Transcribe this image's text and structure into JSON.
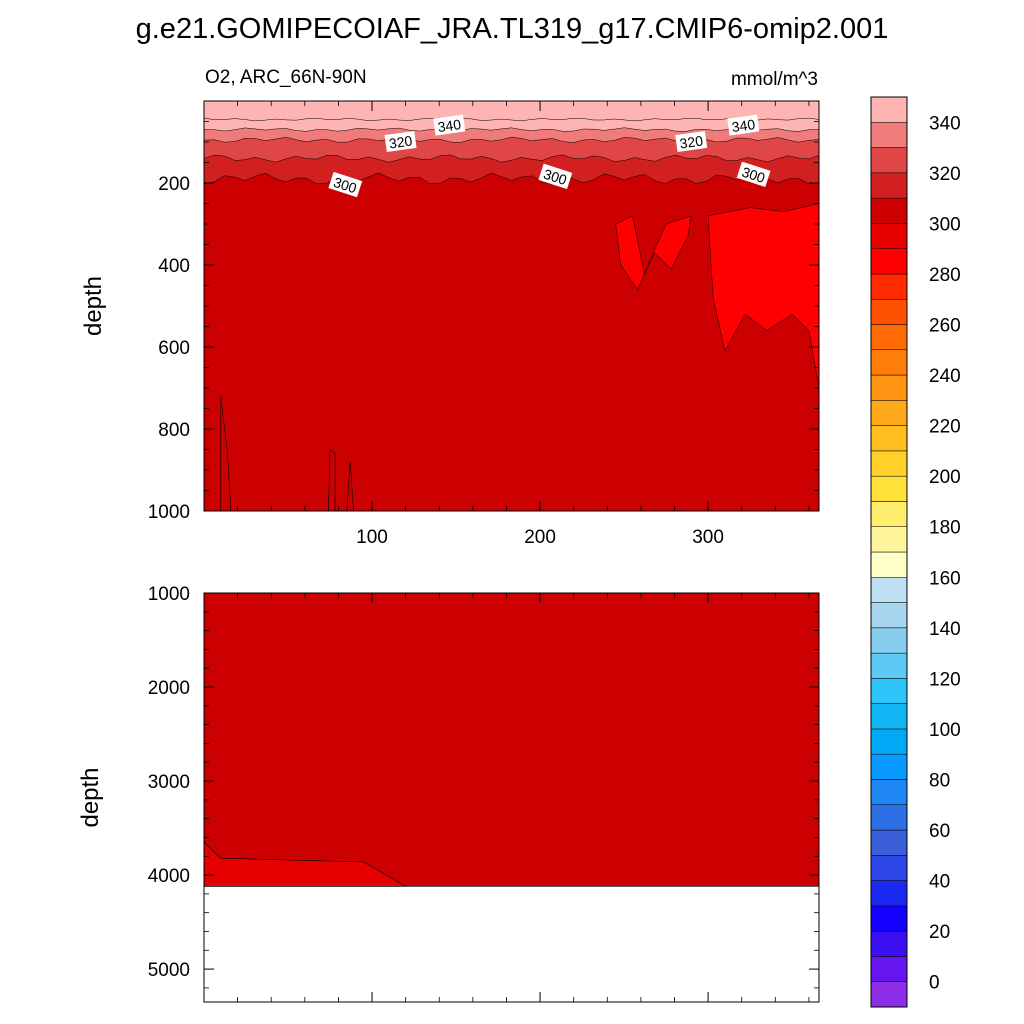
{
  "title": "g.e21.GOMIPECOIAF_JRA.TL319_g17.CMIP6-omip2.001",
  "chart_data": {
    "type": "contour",
    "variable_label": "O2, ARC_66N-90N",
    "units_label": "mmol/m^3",
    "x_range": [
      0,
      366
    ],
    "x_ticks": [
      100,
      200,
      300
    ],
    "x_tick_labels": [
      "100",
      "200",
      "300"
    ],
    "panels": [
      {
        "name": "upper",
        "ylabel": "depth",
        "y_range": [
          0,
          1000
        ],
        "y_ticks": [
          200,
          400,
          600,
          800,
          1000
        ],
        "y_tick_labels": [
          "200",
          "400",
          "600",
          "800",
          "1000"
        ],
        "background_level": 300,
        "contour_labels": [
          {
            "text": "340",
            "x": 146,
            "depth": 60
          },
          {
            "text": "340",
            "x": 321,
            "depth": 60
          },
          {
            "text": "320",
            "x": 117,
            "depth": 100
          },
          {
            "text": "320",
            "x": 290,
            "depth": 100
          },
          {
            "text": "300",
            "x": 84,
            "depth": 205
          },
          {
            "text": "300",
            "x": 209,
            "depth": 185
          },
          {
            "text": "300",
            "x": 327,
            "depth": 180
          }
        ]
      },
      {
        "name": "lower",
        "ylabel": "depth",
        "y_range": [
          1000,
          5350
        ],
        "y_ticks": [
          1000,
          2000,
          3000,
          4000,
          5000
        ],
        "y_tick_labels": [
          "1000",
          "2000",
          "3000",
          "4000",
          "5000"
        ],
        "background_level": 300,
        "ocean_floor_depth": 4120
      }
    ],
    "colorbar": {
      "levels": [
        -10,
        0,
        10,
        20,
        30,
        40,
        50,
        60,
        70,
        80,
        90,
        100,
        110,
        120,
        130,
        140,
        150,
        160,
        170,
        180,
        190,
        200,
        210,
        220,
        230,
        240,
        250,
        260,
        270,
        280,
        290,
        300,
        310,
        320,
        330,
        340,
        350,
        360
      ],
      "colors": [
        "#8d2ee6",
        "#6614f0",
        "#3a0ff2",
        "#1400ff",
        "#1a28f0",
        "#2d46e8",
        "#3a5ed8",
        "#2e6fe6",
        "#1d86f2",
        "#0a99ff",
        "#00a8f5",
        "#11b6f5",
        "#2ec4fa",
        "#5ccaf5",
        "#88cdee",
        "#a6d5f0",
        "#bee0f2",
        "#ffffc8",
        "#fff59a",
        "#ffee6e",
        "#ffe13a",
        "#ffcf2a",
        "#ffbe1e",
        "#ffa81a",
        "#ff9412",
        "#ff7e0a",
        "#ff6a05",
        "#ff5200",
        "#ff2a00",
        "#ff0000",
        "#e60000",
        "#cc0000",
        "#d22020",
        "#e04646",
        "#f07b7b",
        "#ffb4b4"
      ],
      "tick_labels": [
        "0",
        "20",
        "40",
        "60",
        "80",
        "100",
        "120",
        "140",
        "160",
        "180",
        "200",
        "220",
        "240",
        "260",
        "280",
        "300",
        "320",
        "340"
      ]
    }
  }
}
